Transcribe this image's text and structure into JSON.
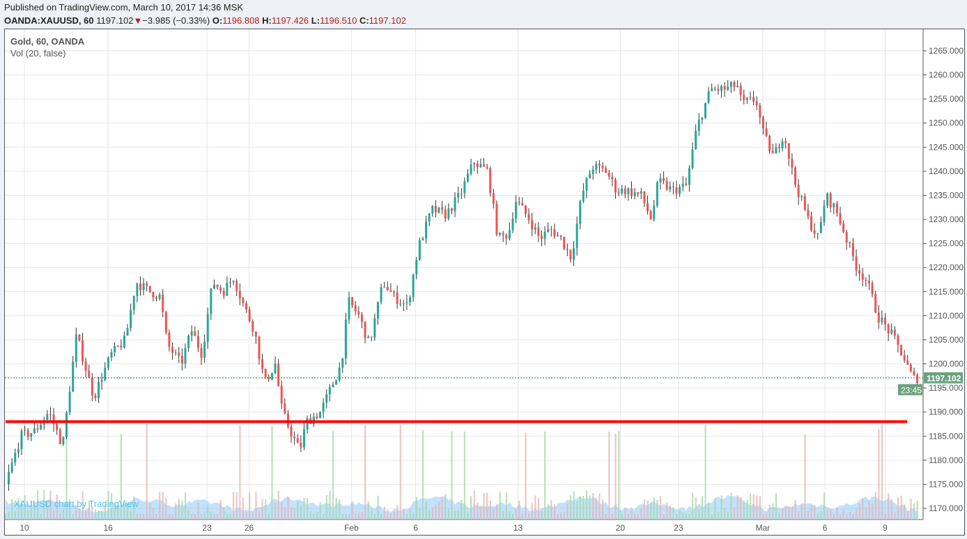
{
  "header": {
    "published": "Published on TradingView.com, March 10, 2017 14:36 MSK",
    "symbol": "OANDA:XAUUSD, 60",
    "last": "1197.102",
    "change": "−3.985 (−0.33%)",
    "o_label": "O:",
    "o": "1196.808",
    "h_label": "H:",
    "h": "1197.426",
    "l_label": "L:",
    "l": "1196.510",
    "c_label": "C:",
    "c": "1197.102"
  },
  "legend": {
    "series": "Gold, 60, OANDA",
    "volume": "Vol (20, false)"
  },
  "watermark": "XAUUSD chart by TradingView",
  "colors": {
    "up": "#26a69a",
    "down": "#ef5350",
    "line": "#ff0000",
    "price_tag": "#6aa37e",
    "vol_area": "#90caf9"
  },
  "chart_data": {
    "type": "candlestick",
    "title": "Gold, 60, OANDA",
    "x_unit": "trading days since Jan 10",
    "ylim": [
      1167,
      1268
    ],
    "yticks": [
      "1170.000",
      "1175.000",
      "1180.000",
      "1185.000",
      "1190.000",
      "1195.000",
      "1200.000",
      "1205.000",
      "1210.000",
      "1215.000",
      "1220.000",
      "1225.000",
      "1230.000",
      "1235.000",
      "1240.000",
      "1245.000",
      "1250.000",
      "1255.000",
      "1260.000",
      "1265.000"
    ],
    "xticks": [
      {
        "label": "10",
        "t": 0
      },
      {
        "label": "16",
        "t": 4.17
      },
      {
        "label": "23",
        "t": 9.1
      },
      {
        "label": "26",
        "t": 11.2
      },
      {
        "label": "Feb",
        "t": 16.3
      },
      {
        "label": "6",
        "t": 19.5
      },
      {
        "label": "13",
        "t": 24.6
      },
      {
        "label": "20",
        "t": 29.7
      },
      {
        "label": "23",
        "t": 32.6
      },
      {
        "label": "Mar",
        "t": 36.8
      },
      {
        "label": "6",
        "t": 39.9
      },
      {
        "label": "9",
        "t": 42.9
      }
    ],
    "price_path": [
      [
        -0.94,
        1175
      ],
      [
        -0.17,
        1185
      ],
      [
        0.52,
        1186
      ],
      [
        1.22,
        1190
      ],
      [
        1.91,
        1183
      ],
      [
        2.26,
        1195
      ],
      [
        2.6,
        1206
      ],
      [
        3.13,
        1198
      ],
      [
        3.47,
        1193
      ],
      [
        3.82,
        1197
      ],
      [
        4.34,
        1202
      ],
      [
        5.03,
        1205
      ],
      [
        5.56,
        1217
      ],
      [
        6.25,
        1215
      ],
      [
        6.77,
        1214
      ],
      [
        7.12,
        1204
      ],
      [
        7.81,
        1200
      ],
      [
        8.33,
        1207
      ],
      [
        8.85,
        1202
      ],
      [
        9.38,
        1217
      ],
      [
        9.9,
        1215
      ],
      [
        10.42,
        1218
      ],
      [
        10.94,
        1212
      ],
      [
        11.46,
        1207
      ],
      [
        11.98,
        1196
      ],
      [
        12.5,
        1200
      ],
      [
        12.85,
        1190
      ],
      [
        13.37,
        1185
      ],
      [
        13.72,
        1182
      ],
      [
        14.06,
        1188
      ],
      [
        14.76,
        1190
      ],
      [
        15.28,
        1195
      ],
      [
        15.8,
        1200
      ],
      [
        16.15,
        1213
      ],
      [
        16.67,
        1210
      ],
      [
        17.19,
        1204
      ],
      [
        17.88,
        1217
      ],
      [
        18.4,
        1214
      ],
      [
        19.1,
        1212
      ],
      [
        19.62,
        1224
      ],
      [
        20.31,
        1232
      ],
      [
        21.01,
        1231
      ],
      [
        21.7,
        1235
      ],
      [
        22.4,
        1242
      ],
      [
        23.09,
        1240
      ],
      [
        23.61,
        1226
      ],
      [
        24.13,
        1227
      ],
      [
        24.48,
        1234
      ],
      [
        25.17,
        1230
      ],
      [
        25.69,
        1226
      ],
      [
        26.22,
        1228
      ],
      [
        26.74,
        1226
      ],
      [
        27.26,
        1222
      ],
      [
        27.78,
        1235
      ],
      [
        28.3,
        1241
      ],
      [
        29.0,
        1240
      ],
      [
        29.51,
        1236
      ],
      [
        30.03,
        1236
      ],
      [
        30.73,
        1235
      ],
      [
        31.25,
        1230
      ],
      [
        31.6,
        1238
      ],
      [
        32.29,
        1236
      ],
      [
        32.99,
        1237
      ],
      [
        33.51,
        1249
      ],
      [
        34.2,
        1257
      ],
      [
        34.9,
        1257
      ],
      [
        35.52,
        1258
      ],
      [
        35.76,
        1254
      ],
      [
        36.46,
        1255
      ],
      [
        36.81,
        1248
      ],
      [
        37.33,
        1243
      ],
      [
        37.85,
        1248
      ],
      [
        38.37,
        1238
      ],
      [
        39.06,
        1230
      ],
      [
        39.58,
        1226
      ],
      [
        39.93,
        1235
      ],
      [
        40.45,
        1232
      ],
      [
        40.97,
        1226
      ],
      [
        41.49,
        1220
      ],
      [
        42.01,
        1217
      ],
      [
        42.53,
        1210
      ],
      [
        43.23,
        1206
      ],
      [
        43.75,
        1202
      ],
      [
        44.27,
        1197
      ],
      [
        44.55,
        1197.1
      ]
    ],
    "support_line": {
      "price": 1188,
      "t_start": -0.94,
      "t_end": 44.0
    },
    "last_price": "1197.102",
    "countdown": "23:45"
  }
}
